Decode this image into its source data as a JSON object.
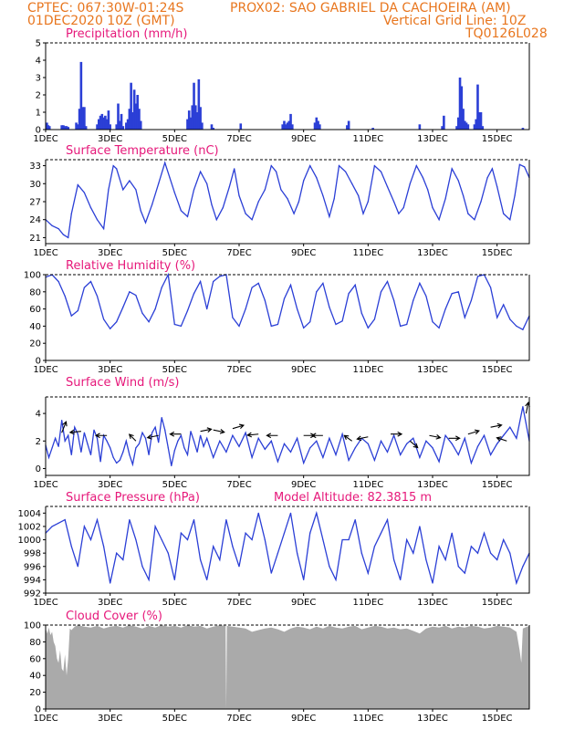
{
  "header": {
    "line1_left": "CPTEC:  067:30W-01:24S",
    "line1_right": "PROX02: SAO GABRIEL DA CACHOEIRA (AM)",
    "line2_left": "01DEC2020 10Z (GMT)",
    "line2_right": "Vertical Grid Line: 10Z",
    "line3_right": "TQ0126L028"
  },
  "colors": {
    "header": "#e8761e",
    "title": "#e6187a",
    "series": "#2b3fd6",
    "cloud": "#aaaaaa"
  },
  "x_tick_labels": [
    "1DEC",
    "3DEC",
    "5DEC",
    "7DEC",
    "9DEC",
    "11DEC",
    "13DEC",
    "15DEC"
  ],
  "x_days": [
    1,
    3,
    5,
    7,
    9,
    11,
    13,
    15
  ],
  "x_range": [
    1,
    16
  ],
  "chart_data": [
    {
      "type": "bar",
      "title": "Precipitation (mm/h)",
      "ylim": [
        0,
        5
      ],
      "yticks": [
        0,
        1,
        2,
        3,
        4,
        5
      ],
      "x": [
        1.04,
        1.08,
        1.12,
        1.5,
        1.55,
        1.6,
        1.65,
        1.7,
        1.95,
        2.0,
        2.05,
        2.1,
        2.15,
        2.2,
        2.25,
        2.6,
        2.65,
        2.7,
        2.75,
        2.8,
        2.85,
        2.9,
        2.95,
        3.0,
        3.2,
        3.25,
        3.3,
        3.35,
        3.4,
        3.5,
        3.55,
        3.6,
        3.65,
        3.7,
        3.75,
        3.8,
        3.85,
        3.9,
        3.95,
        5.4,
        5.45,
        5.5,
        5.55,
        5.6,
        5.65,
        5.7,
        5.75,
        5.8,
        5.85,
        6.15,
        6.2,
        7.05,
        8.35,
        8.4,
        8.45,
        8.5,
        8.55,
        8.6,
        8.65,
        9.35,
        9.4,
        9.45,
        9.5,
        10.35,
        10.4,
        11.15,
        12.6,
        13.3,
        13.35,
        13.75,
        13.8,
        13.85,
        13.9,
        13.95,
        14.0,
        14.05,
        14.1,
        14.3,
        14.35,
        14.4,
        14.45,
        14.5,
        14.55,
        15.8
      ],
      "values": [
        0.4,
        0.25,
        0.2,
        0.25,
        0.25,
        0.2,
        0.2,
        0.15,
        0.4,
        0.3,
        1.2,
        3.9,
        1.3,
        1.3,
        0.2,
        0.3,
        0.6,
        0.8,
        0.9,
        0.7,
        0.8,
        0.6,
        1.1,
        0.3,
        0.3,
        1.5,
        0.5,
        0.9,
        0.2,
        0.4,
        0.6,
        1.2,
        2.7,
        1.0,
        2.3,
        1.5,
        2.0,
        1.2,
        0.5,
        0.6,
        1.1,
        0.7,
        1.4,
        2.7,
        1.4,
        1.0,
        2.9,
        1.3,
        0.4,
        0.3,
        0.1,
        0.35,
        0.3,
        0.5,
        0.3,
        0.4,
        0.5,
        0.9,
        0.3,
        0.4,
        0.7,
        0.5,
        0.3,
        0.25,
        0.5,
        0.1,
        0.3,
        0.2,
        0.8,
        0.2,
        0.7,
        3.0,
        2.5,
        1.2,
        0.5,
        0.4,
        0.3,
        0.3,
        0.6,
        2.6,
        1.0,
        1.0,
        0.2,
        0.1
      ]
    },
    {
      "type": "line",
      "title": "Surface Temperature (nC)",
      "ylim": [
        20,
        34
      ],
      "yticks": [
        21,
        24,
        27,
        30,
        33
      ],
      "x": [
        1.0,
        1.2,
        1.4,
        1.55,
        1.7,
        1.8,
        2.0,
        2.2,
        2.4,
        2.6,
        2.8,
        2.95,
        3.1,
        3.2,
        3.4,
        3.6,
        3.8,
        3.95,
        4.1,
        4.3,
        4.5,
        4.7,
        4.85,
        5.0,
        5.2,
        5.4,
        5.6,
        5.8,
        6.0,
        6.15,
        6.3,
        6.5,
        6.7,
        6.85,
        7.0,
        7.2,
        7.4,
        7.6,
        7.8,
        8.0,
        8.15,
        8.3,
        8.5,
        8.7,
        8.85,
        9.0,
        9.2,
        9.4,
        9.6,
        9.8,
        9.95,
        10.1,
        10.3,
        10.5,
        10.7,
        10.85,
        11.0,
        11.2,
        11.4,
        11.6,
        11.8,
        11.95,
        12.1,
        12.3,
        12.5,
        12.7,
        12.85,
        13.0,
        13.2,
        13.4,
        13.6,
        13.8,
        13.95,
        14.1,
        14.3,
        14.5,
        14.7,
        14.85,
        15.0,
        15.2,
        15.4,
        15.55,
        15.7,
        15.85,
        16.0
      ],
      "values": [
        24,
        23,
        22.5,
        21.5,
        21,
        25,
        29.8,
        28.5,
        26,
        24,
        22.5,
        29,
        33,
        32.5,
        29,
        30.5,
        29,
        25.5,
        23.5,
        26.5,
        30,
        33.5,
        31,
        28.5,
        25.5,
        24.5,
        29,
        32,
        30,
        26.5,
        24,
        26,
        29.5,
        32.5,
        28,
        25,
        24,
        27,
        29,
        33,
        32,
        29,
        27.5,
        25,
        27,
        30.5,
        33,
        31,
        28,
        24.5,
        27.5,
        33,
        32,
        30,
        28,
        25,
        27,
        33,
        32,
        29.5,
        27,
        25,
        26,
        30,
        33,
        31,
        29,
        26,
        24,
        27.5,
        32.5,
        30.5,
        28,
        25,
        24,
        27,
        31,
        32.5,
        29.5,
        25,
        24,
        28,
        33.2,
        32.8,
        31
      ]
    },
    {
      "type": "line",
      "title": "Relative Humidity (%)",
      "ylim": [
        0,
        100
      ],
      "yticks": [
        0,
        20,
        40,
        60,
        80,
        100
      ],
      "x": [
        1.0,
        1.2,
        1.4,
        1.6,
        1.8,
        2.0,
        2.2,
        2.4,
        2.6,
        2.8,
        3.0,
        3.2,
        3.4,
        3.6,
        3.8,
        4.0,
        4.2,
        4.4,
        4.6,
        4.8,
        5.0,
        5.2,
        5.4,
        5.6,
        5.8,
        6.0,
        6.2,
        6.4,
        6.6,
        6.8,
        7.0,
        7.2,
        7.4,
        7.6,
        7.8,
        8.0,
        8.2,
        8.4,
        8.6,
        8.8,
        9.0,
        9.2,
        9.4,
        9.6,
        9.8,
        10.0,
        10.2,
        10.4,
        10.6,
        10.8,
        11.0,
        11.2,
        11.4,
        11.6,
        11.8,
        12.0,
        12.2,
        12.4,
        12.6,
        12.8,
        13.0,
        13.2,
        13.4,
        13.6,
        13.8,
        14.0,
        14.2,
        14.4,
        14.6,
        14.8,
        15.0,
        15.2,
        15.4,
        15.6,
        15.8,
        16.0
      ],
      "values": [
        97,
        100,
        92,
        75,
        52,
        58,
        85,
        92,
        75,
        48,
        37,
        45,
        62,
        80,
        76,
        55,
        45,
        60,
        85,
        100,
        42,
        40,
        58,
        78,
        92,
        60,
        92,
        98,
        100,
        50,
        40,
        60,
        85,
        90,
        70,
        40,
        42,
        72,
        88,
        60,
        38,
        45,
        80,
        90,
        62,
        42,
        46,
        78,
        88,
        55,
        38,
        48,
        80,
        92,
        70,
        40,
        42,
        70,
        90,
        75,
        45,
        38,
        60,
        78,
        80,
        50,
        70,
        98,
        100,
        85,
        50,
        65,
        48,
        40,
        36,
        52
      ]
    },
    {
      "type": "line",
      "title": "Surface Wind (m/s)",
      "ylim": [
        -0.5,
        5.2
      ],
      "yticks": [
        0,
        2,
        4
      ],
      "x": [
        1.0,
        1.1,
        1.2,
        1.3,
        1.4,
        1.5,
        1.6,
        1.7,
        1.8,
        1.9,
        2.0,
        2.1,
        2.2,
        2.3,
        2.4,
        2.5,
        2.6,
        2.7,
        2.8,
        2.9,
        3.0,
        3.1,
        3.2,
        3.3,
        3.4,
        3.5,
        3.6,
        3.7,
        3.8,
        3.9,
        4.0,
        4.1,
        4.2,
        4.3,
        4.4,
        4.5,
        4.6,
        4.7,
        4.8,
        4.9,
        5.0,
        5.1,
        5.2,
        5.3,
        5.4,
        5.5,
        5.6,
        5.7,
        5.8,
        5.9,
        6.0,
        6.2,
        6.4,
        6.6,
        6.8,
        7.0,
        7.2,
        7.4,
        7.6,
        7.8,
        8.0,
        8.2,
        8.4,
        8.6,
        8.8,
        9.0,
        9.2,
        9.4,
        9.6,
        9.8,
        10.0,
        10.2,
        10.4,
        10.6,
        10.8,
        11.0,
        11.2,
        11.4,
        11.6,
        11.8,
        12.0,
        12.2,
        12.4,
        12.6,
        12.8,
        13.0,
        13.2,
        13.4,
        13.6,
        13.8,
        14.0,
        14.2,
        14.4,
        14.6,
        14.8,
        15.0,
        15.2,
        15.4,
        15.6,
        15.8,
        16.0
      ],
      "values": [
        1.7,
        0.8,
        1.5,
        2.2,
        1.6,
        3.5,
        2.0,
        2.4,
        1.0,
        3.0,
        2.5,
        1.2,
        2.6,
        1.8,
        1.0,
        2.8,
        2.2,
        0.5,
        2.4,
        2.0,
        1.5,
        0.8,
        0.4,
        0.6,
        1.2,
        2.0,
        1.0,
        0.3,
        1.5,
        1.8,
        2.6,
        2.2,
        1.0,
        2.6,
        3.0,
        1.9,
        3.7,
        2.8,
        1.5,
        0.2,
        1.3,
        2.0,
        2.4,
        1.5,
        1.0,
        2.7,
        2.0,
        1.2,
        2.4,
        1.6,
        2.2,
        0.8,
        2.0,
        1.2,
        2.4,
        1.6,
        2.6,
        0.8,
        2.2,
        1.4,
        2.0,
        0.5,
        1.8,
        1.2,
        2.2,
        0.4,
        1.5,
        2.0,
        0.8,
        2.2,
        1.0,
        2.5,
        0.6,
        1.5,
        2.2,
        1.8,
        0.6,
        2.0,
        1.2,
        2.4,
        1.0,
        1.8,
        2.2,
        0.8,
        2.0,
        1.5,
        0.5,
        2.4,
        1.8,
        1.0,
        2.2,
        0.4,
        1.6,
        2.4,
        1.0,
        1.8,
        2.4,
        3.0,
        2.2,
        4.5,
        2.0
      ],
      "arrows": [
        {
          "x": 1.5,
          "speed": 2.6,
          "dir": [
            0.4,
            -1
          ]
        },
        {
          "x": 2.1,
          "speed": 2.7,
          "dir": [
            -1,
            0.1
          ]
        },
        {
          "x": 2.9,
          "speed": 2.4,
          "dir": [
            -1,
            0
          ]
        },
        {
          "x": 3.8,
          "speed": 2.0,
          "dir": [
            -0.6,
            -0.6
          ]
        },
        {
          "x": 4.5,
          "speed": 2.4,
          "dir": [
            -1,
            0.2
          ]
        },
        {
          "x": 5.2,
          "speed": 2.5,
          "dir": [
            -1,
            0
          ]
        },
        {
          "x": 5.8,
          "speed": 2.7,
          "dir": [
            1,
            -0.2
          ]
        },
        {
          "x": 6.2,
          "speed": 2.8,
          "dir": [
            1,
            0.2
          ]
        },
        {
          "x": 6.8,
          "speed": 2.9,
          "dir": [
            1,
            -0.3
          ]
        },
        {
          "x": 7.6,
          "speed": 2.5,
          "dir": [
            -1,
            0.1
          ]
        },
        {
          "x": 8.2,
          "speed": 2.4,
          "dir": [
            -1,
            0
          ]
        },
        {
          "x": 9.0,
          "speed": 2.4,
          "dir": [
            1,
            0
          ]
        },
        {
          "x": 9.6,
          "speed": 2.4,
          "dir": [
            -1,
            0
          ]
        },
        {
          "x": 10.5,
          "speed": 2.0,
          "dir": [
            -0.7,
            -0.5
          ]
        },
        {
          "x": 11.0,
          "speed": 2.3,
          "dir": [
            -1,
            0.2
          ]
        },
        {
          "x": 11.7,
          "speed": 2.5,
          "dir": [
            1,
            0
          ]
        },
        {
          "x": 12.3,
          "speed": 2.0,
          "dir": [
            0.7,
            0.6
          ]
        },
        {
          "x": 12.9,
          "speed": 2.4,
          "dir": [
            1,
            0.2
          ]
        },
        {
          "x": 13.5,
          "speed": 2.2,
          "dir": [
            1,
            0
          ]
        },
        {
          "x": 14.1,
          "speed": 2.5,
          "dir": [
            1,
            -0.3
          ]
        },
        {
          "x": 14.8,
          "speed": 3.0,
          "dir": [
            1,
            -0.2
          ]
        },
        {
          "x": 15.3,
          "speed": 2.0,
          "dir": [
            -0.9,
            -0.3
          ]
        },
        {
          "x": 15.9,
          "speed": 4.0,
          "dir": [
            0.2,
            -1
          ]
        }
      ]
    },
    {
      "type": "line",
      "title": "Surface Pressure (hPa)",
      "extra_label": "Model Altitude: 82.3815  m",
      "ylim": [
        992,
        1005
      ],
      "yticks": [
        992,
        994,
        996,
        998,
        1000,
        1002,
        1004
      ],
      "x": [
        1.0,
        1.2,
        1.4,
        1.6,
        1.8,
        2.0,
        2.2,
        2.4,
        2.6,
        2.8,
        3.0,
        3.2,
        3.4,
        3.6,
        3.8,
        4.0,
        4.2,
        4.4,
        4.6,
        4.8,
        5.0,
        5.2,
        5.4,
        5.6,
        5.8,
        6.0,
        6.2,
        6.4,
        6.6,
        6.8,
        7.0,
        7.2,
        7.4,
        7.6,
        7.8,
        8.0,
        8.2,
        8.4,
        8.6,
        8.8,
        9.0,
        9.2,
        9.4,
        9.6,
        9.8,
        10.0,
        10.2,
        10.4,
        10.6,
        10.8,
        11.0,
        11.2,
        11.4,
        11.6,
        11.8,
        12.0,
        12.2,
        12.4,
        12.6,
        12.8,
        13.0,
        13.2,
        13.4,
        13.6,
        13.8,
        14.0,
        14.2,
        14.4,
        14.6,
        14.8,
        15.0,
        15.2,
        15.4,
        15.6,
        15.8,
        16.0
      ],
      "values": [
        1001,
        1002,
        1002.5,
        1003,
        999,
        996,
        1002,
        1000,
        1003,
        999,
        993.5,
        998,
        997,
        1003,
        1000,
        996,
        994,
        1002,
        1000,
        998,
        994,
        1001,
        1000,
        1003,
        997,
        994,
        999,
        997,
        1003,
        999,
        996,
        1001,
        1000,
        1004,
        1000,
        995,
        998,
        1001,
        1004,
        998,
        994,
        1001,
        1004,
        1000,
        996,
        994,
        1000,
        1000,
        1003,
        998,
        995,
        999,
        1001,
        1003,
        997,
        994,
        1000,
        998,
        1002,
        997,
        993.5,
        999,
        997,
        1001,
        996,
        995,
        999,
        998,
        1001,
        998,
        997,
        1000,
        998,
        993.5,
        996,
        998
      ]
    },
    {
      "type": "area",
      "title": "Cloud Cover (%)",
      "ylim": [
        0,
        100
      ],
      "yticks": [
        0,
        20,
        40,
        60,
        80,
        100
      ],
      "x": [
        1.0,
        1.05,
        1.1,
        1.15,
        1.2,
        1.25,
        1.3,
        1.35,
        1.4,
        1.45,
        1.5,
        1.55,
        1.6,
        1.65,
        1.7,
        1.75,
        1.8,
        1.9,
        2.0,
        2.2,
        2.4,
        2.6,
        2.8,
        3.0,
        3.2,
        3.4,
        3.6,
        3.8,
        4.0,
        4.2,
        4.4,
        4.6,
        4.8,
        5.0,
        5.2,
        5.4,
        5.6,
        5.8,
        6.0,
        6.2,
        6.4,
        6.58,
        6.6,
        6.62,
        6.8,
        7.0,
        7.2,
        7.4,
        7.6,
        7.8,
        8.0,
        8.2,
        8.4,
        8.6,
        8.8,
        9.0,
        9.2,
        9.4,
        9.6,
        9.8,
        10.0,
        10.2,
        10.4,
        10.6,
        10.8,
        11.0,
        11.2,
        11.4,
        11.6,
        11.8,
        12.0,
        12.2,
        12.4,
        12.6,
        12.8,
        13.0,
        13.2,
        13.4,
        13.6,
        13.8,
        14.0,
        14.2,
        14.4,
        14.6,
        14.8,
        15.0,
        15.2,
        15.4,
        15.6,
        15.7,
        15.75,
        15.8,
        16.0
      ],
      "values": [
        96,
        90,
        97,
        88,
        92,
        80,
        75,
        60,
        55,
        70,
        48,
        45,
        65,
        40,
        60,
        96,
        94,
        98,
        100,
        98,
        97,
        99,
        96,
        98,
        99,
        97,
        100,
        98,
        96,
        99,
        97,
        100,
        98,
        99,
        97,
        100,
        98,
        99,
        96,
        98,
        100,
        99,
        0,
        99,
        98,
        97,
        96,
        92,
        94,
        96,
        97,
        95,
        92,
        96,
        98,
        97,
        95,
        98,
        96,
        99,
        97,
        96,
        98,
        99,
        95,
        97,
        99,
        98,
        96,
        97,
        95,
        96,
        93,
        90,
        96,
        98,
        97,
        99,
        96,
        98,
        97,
        99,
        98,
        96,
        97,
        99,
        98,
        97,
        92,
        70,
        55,
        96,
        99
      ]
    }
  ]
}
